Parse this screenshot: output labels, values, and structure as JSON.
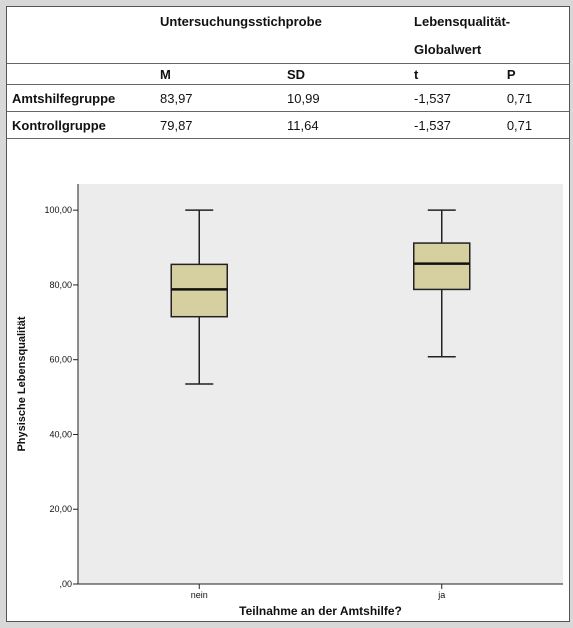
{
  "table": {
    "header_top": [
      "",
      "Untersuchungsstichprobe",
      "Lebensqualität-",
      "",
      ""
    ],
    "header_second": [
      "",
      "",
      "Globalwert",
      "",
      ""
    ],
    "columns": [
      "",
      "M",
      "SD",
      "t",
      "P"
    ],
    "rows": [
      [
        "Amtshilfegruppe",
        "83,97",
        "10,99",
        "-1,537",
        "0,71"
      ],
      [
        "Kontrollgruppe",
        "79,87",
        "11,64",
        "-1,537",
        "0,71"
      ]
    ]
  },
  "chart_data": {
    "type": "boxplot",
    "xlabel": "Teilnahme an der Amtshilfe?",
    "ylabel": "Physische Lebensqualität",
    "ylim": [
      0,
      107
    ],
    "yticks": [
      0,
      20,
      40,
      60,
      80,
      100
    ],
    "ytick_labels": [
      ",00",
      "20,00",
      "40,00",
      "60,00",
      "80,00",
      "100,00"
    ],
    "categories": [
      "nein",
      "ja"
    ],
    "boxes": [
      {
        "category": "nein",
        "whisker_low": 53.5,
        "q1": 71.5,
        "median": 78.8,
        "q3": 85.5,
        "whisker_high": 100
      },
      {
        "category": "ja",
        "whisker_low": 60.8,
        "q1": 78.8,
        "median": 85.7,
        "q3": 91.2,
        "whisker_high": 100
      }
    ],
    "grid": false,
    "colors": {
      "plot_bg": "#ececec",
      "box_fill": "#d6cfa0",
      "box_stroke": "#222222"
    }
  }
}
